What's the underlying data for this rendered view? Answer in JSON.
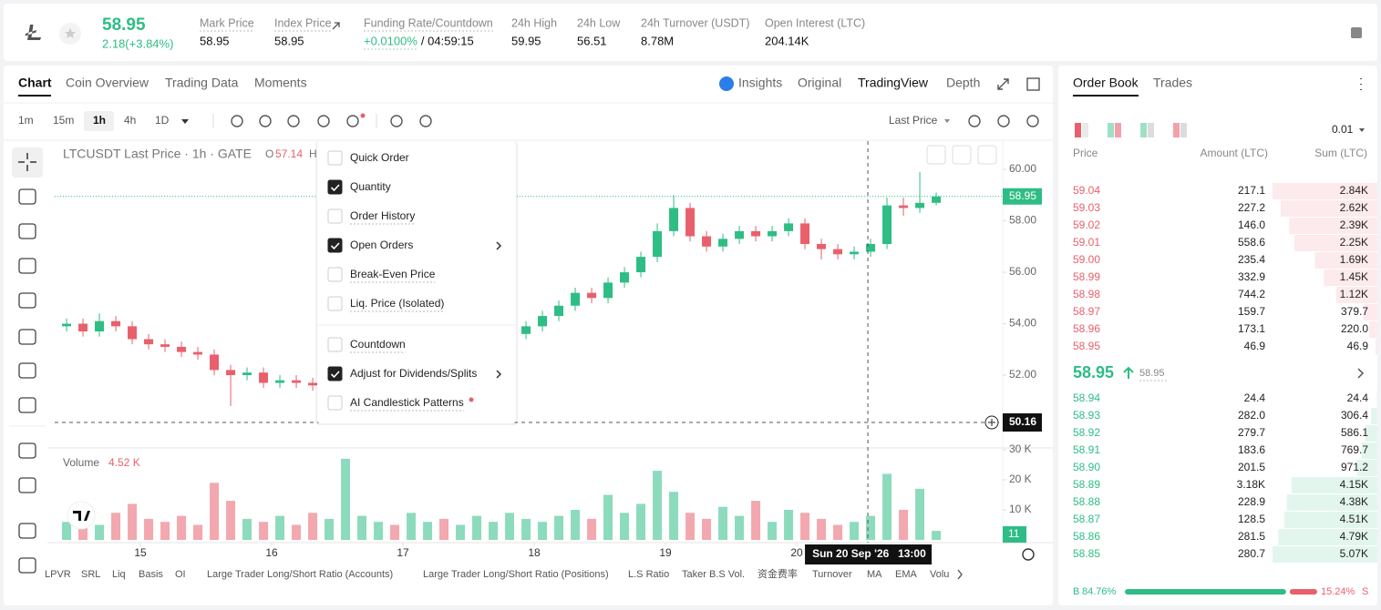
{
  "header": {
    "price": "58.95",
    "change": "2.18(+3.84%)",
    "stats": [
      {
        "label": "Mark Price",
        "value": "58.95"
      },
      {
        "label": "Index Price",
        "value": "58.95"
      },
      {
        "label": "Funding Rate/Countdown",
        "value": "+0.0100%",
        "extra": "/ 04:59:15"
      },
      {
        "label": "24h High",
        "value": "59.95"
      },
      {
        "label": "24h Low",
        "value": "56.51"
      },
      {
        "label": "24h Turnover (USDT)",
        "value": "8.78M"
      },
      {
        "label": "Open Interest (LTC)",
        "value": "204.14K"
      }
    ]
  },
  "tabs": [
    "Chart",
    "Coin Overview",
    "Trading Data",
    "Moments"
  ],
  "active_tab": "Chart",
  "view_tabs": [
    "Insights",
    "Original",
    "TradingView",
    "Depth"
  ],
  "active_view": "TradingView",
  "timeframes": [
    "1m",
    "15m",
    "1h",
    "4h",
    "1D"
  ],
  "active_timeframe": "1h",
  "price_source": "Last Price",
  "menu": [
    {
      "label": "Quick Order",
      "checked": false,
      "submenu": false
    },
    {
      "label": "Quantity",
      "checked": true,
      "submenu": false
    },
    {
      "label": "Order History",
      "checked": false,
      "submenu": false
    },
    {
      "label": "Open Orders",
      "checked": true,
      "submenu": true
    },
    {
      "label": "Break-Even Price",
      "checked": false,
      "submenu": false
    },
    {
      "label": "Liq. Price (Isolated)",
      "checked": false,
      "submenu": false
    },
    {
      "label": "Countdown",
      "checked": false,
      "submenu": false
    },
    {
      "label": "Adjust for Dividends/Splits",
      "checked": true,
      "submenu": true
    },
    {
      "label": "AI Candlestick Patterns",
      "checked": false,
      "submenu": false
    }
  ],
  "chart_data": {
    "type": "candlestick",
    "legend_title": "LTCUSDT Last Price · 1h · GATE",
    "open_label": "O",
    "open_value": "57.14",
    "high_label": "H",
    "up_color": "#2ebd85",
    "down_color": "#e8606c",
    "ylim": [
      49.24,
      61.1
    ],
    "yticks": [
      {
        "value": 60,
        "label": "60.00"
      },
      {
        "value": 58,
        "label": "58.00"
      },
      {
        "value": 56,
        "label": "56.00"
      },
      {
        "value": 54,
        "label": "54.00"
      },
      {
        "value": 52,
        "label": "52.00"
      }
    ],
    "xlim": [
      14.347,
      21.569
    ],
    "xticks": [
      15,
      16,
      17,
      18,
      19,
      20
    ],
    "last_price": {
      "value": 58.95,
      "label": "58.95"
    },
    "crosshair_price": {
      "value": 50.16,
      "label": "50.16"
    },
    "crosshair_x": 20.5417,
    "crosshair_date": "Sun 20 Sep '26",
    "crosshair_time": "13:00",
    "x": [
      14.4375,
      14.5625,
      14.6875,
      14.8125,
      14.9375,
      15.0625,
      15.1875,
      15.3125,
      15.4375,
      15.5625,
      15.6875,
      15.8125,
      15.9375,
      16.0625,
      16.1875,
      16.3125,
      16.4375,
      16.5625,
      16.6875,
      16.8125,
      16.9375,
      17.0625,
      17.1875,
      17.3125,
      17.4375,
      17.5625,
      17.6875,
      17.8125,
      17.9375,
      18.0625,
      18.1875,
      18.3125,
      18.4375,
      18.5625,
      18.6875,
      18.8125,
      18.9375,
      19.0625,
      19.1875,
      19.3125,
      19.4375,
      19.5625,
      19.6875,
      19.8125,
      19.9375,
      20.0625,
      20.1875,
      20.3125,
      20.4375,
      20.5625,
      20.6875,
      20.8125,
      20.9375,
      21.0625
    ],
    "open": [
      53.9,
      54.0,
      53.7,
      54.1,
      53.9,
      53.4,
      53.2,
      53.1,
      52.9,
      52.8,
      52.2,
      52.0,
      52.1,
      51.7,
      51.8,
      51.7,
      51.6,
      51.9,
      52.2,
      52.4,
      52.6,
      52.5,
      52.8,
      53.0,
      52.9,
      53.2,
      53.3,
      53.5,
      53.6,
      53.9,
      54.3,
      54.7,
      55.2,
      55.0,
      55.6,
      56.0,
      56.6,
      57.6,
      58.5,
      57.4,
      57.0,
      57.3,
      57.6,
      57.4,
      57.6,
      57.9,
      57.1,
      56.9,
      56.7,
      56.8,
      57.1,
      58.6,
      58.5,
      58.7
    ],
    "high": [
      54.2,
      54.2,
      54.4,
      54.3,
      54.1,
      53.6,
      53.4,
      53.3,
      53.1,
      53.0,
      52.4,
      52.3,
      52.3,
      52.0,
      52.0,
      51.9,
      52.1,
      52.4,
      52.6,
      52.8,
      52.8,
      53.0,
      53.2,
      53.2,
      53.4,
      53.5,
      53.7,
      53.8,
      54.1,
      54.5,
      54.9,
      55.4,
      55.4,
      55.8,
      56.2,
      56.8,
      57.9,
      59.0,
      58.7,
      57.6,
      57.5,
      57.8,
      57.8,
      57.8,
      58.1,
      58.1,
      57.3,
      57.1,
      57.0,
      57.3,
      58.9,
      58.9,
      59.9,
      59.1
    ],
    "low": [
      53.7,
      53.5,
      53.5,
      53.7,
      53.2,
      53.0,
      52.9,
      52.7,
      52.6,
      52.0,
      50.8,
      51.8,
      51.5,
      51.5,
      51.5,
      51.4,
      51.4,
      51.7,
      52.0,
      52.2,
      52.3,
      52.3,
      52.6,
      52.7,
      52.7,
      53.0,
      53.1,
      53.3,
      53.4,
      53.7,
      54.1,
      54.5,
      54.8,
      54.8,
      55.4,
      55.8,
      56.4,
      57.4,
      57.2,
      56.8,
      56.8,
      57.1,
      57.2,
      57.2,
      57.4,
      56.9,
      56.5,
      56.5,
      56.5,
      56.6,
      56.9,
      58.2,
      58.3,
      58.6
    ],
    "close": [
      54.0,
      53.7,
      54.1,
      53.9,
      53.4,
      53.2,
      53.1,
      52.9,
      52.8,
      52.2,
      52.0,
      52.1,
      51.7,
      51.8,
      51.7,
      51.6,
      51.9,
      52.2,
      52.4,
      52.6,
      52.5,
      52.8,
      53.0,
      52.9,
      53.2,
      53.3,
      53.5,
      53.6,
      53.9,
      54.3,
      54.7,
      55.2,
      55.0,
      55.6,
      56.0,
      56.6,
      57.6,
      58.5,
      57.4,
      57.0,
      57.3,
      57.6,
      57.4,
      57.6,
      57.9,
      57.1,
      56.9,
      56.7,
      56.8,
      57.1,
      58.6,
      58.5,
      58.7,
      58.95
    ],
    "volume": [
      6000,
      8000,
      5000,
      9000,
      12000,
      7000,
      6000,
      8000,
      5000,
      19000,
      13000,
      7000,
      6000,
      8000,
      5000,
      9000,
      7000,
      27000,
      8000,
      6000,
      5000,
      9000,
      6000,
      7000,
      5000,
      8000,
      6000,
      9000,
      7000,
      6000,
      8000,
      10000,
      7000,
      15000,
      9000,
      12000,
      23000,
      16000,
      9000,
      7000,
      11000,
      8000,
      13000,
      6000,
      10000,
      9000,
      7000,
      5000,
      6000,
      8000,
      22000,
      10000,
      17000,
      3000
    ],
    "volume_title": "Volume",
    "volume_value": "4.52 K",
    "volume_tag": "11",
    "vol_ylim": [
      0,
      30000
    ],
    "vol_yticks": [
      {
        "value": 30000,
        "label": "30 K"
      },
      {
        "value": 20000,
        "label": "20 K"
      },
      {
        "value": 10000,
        "label": "10 K"
      }
    ]
  },
  "indicators": [
    "LPVR",
    "SRL",
    "Liq",
    "Basis",
    "OI",
    "Large Trader Long/Short Ratio (Accounts)",
    "Large Trader Long/Short Ratio (Positions)",
    "L.S Ratio",
    "Taker B.S Vol.",
    "资金费率",
    "Turnover",
    "MA",
    "EMA",
    "Volu"
  ],
  "order_book": {
    "tabs": [
      "Order Book",
      "Trades"
    ],
    "precision": "0.01",
    "columns": [
      "Price",
      "Amount (LTC)",
      "Sum (LTC)"
    ],
    "asks": [
      {
        "price": "59.04",
        "amount": "217.1",
        "sum": {
          "value": 2840,
          "label": "2.84K"
        }
      },
      {
        "price": "59.03",
        "amount": "227.2",
        "sum": {
          "value": 2620,
          "label": "2.62K"
        }
      },
      {
        "price": "59.02",
        "amount": "146.0",
        "sum": {
          "value": 2390,
          "label": "2.39K"
        }
      },
      {
        "price": "59.01",
        "amount": "558.6",
        "sum": {
          "value": 2250,
          "label": "2.25K"
        }
      },
      {
        "price": "59.00",
        "amount": "235.4",
        "sum": {
          "value": 1690,
          "label": "1.69K"
        }
      },
      {
        "price": "58.99",
        "amount": "332.9",
        "sum": {
          "value": 1450,
          "label": "1.45K"
        }
      },
      {
        "price": "58.98",
        "amount": "744.2",
        "sum": {
          "value": 1120,
          "label": "1.12K"
        }
      },
      {
        "price": "58.97",
        "amount": "159.7",
        "sum": 379.7
      },
      {
        "price": "58.96",
        "amount": "173.1",
        "sum": {
          "value": 220,
          "label": "220.0"
        }
      },
      {
        "price": "58.95",
        "amount": "46.9",
        "sum": 46.9
      }
    ],
    "mid_price": "58.95",
    "mark_price": "58.95",
    "bids": [
      {
        "price": "58.94",
        "amount": "24.4",
        "sum": 24.4
      },
      {
        "price": "58.93",
        "amount": "282.0",
        "sum": 306.4
      },
      {
        "price": "58.92",
        "amount": "279.7",
        "sum": 586.1
      },
      {
        "price": "58.91",
        "amount": "183.6",
        "sum": 769.7
      },
      {
        "price": "58.90",
        "amount": "201.5",
        "sum": 971.2
      },
      {
        "price": "58.89",
        "amount": "3.18K",
        "sum": {
          "value": 4150,
          "label": "4.15K"
        }
      },
      {
        "price": "58.88",
        "amount": "228.9",
        "sum": {
          "value": 4380,
          "label": "4.38K"
        }
      },
      {
        "price": "58.87",
        "amount": "128.5",
        "sum": {
          "value": 4510,
          "label": "4.51K"
        }
      },
      {
        "price": "58.86",
        "amount": "281.5",
        "sum": {
          "value": 4790,
          "label": "4.79K"
        }
      },
      {
        "price": "58.85",
        "amount": "280.7",
        "sum": {
          "value": 5070,
          "label": "5.07K"
        }
      }
    ],
    "buy_label": "B",
    "buy": {
      "value": 84.76,
      "label": "84.76%"
    },
    "sell": {
      "value": 15.24,
      "label": "15.24%"
    },
    "sell_label": "S"
  }
}
